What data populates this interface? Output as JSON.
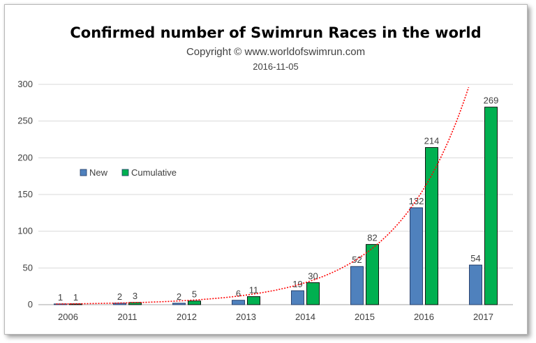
{
  "chart_data": {
    "type": "bar",
    "title": "Confirmed number of Swimrun Races in the world",
    "subtitle": "Copyright © www.worldofswimrun.com",
    "date": "2016-11-05",
    "categories": [
      "2006",
      "2011",
      "2012",
      "2013",
      "2014",
      "2015",
      "2016",
      "2017"
    ],
    "series": [
      {
        "name": "New",
        "values": [
          1,
          2,
          2,
          6,
          19,
          52,
          132,
          54
        ],
        "color": "#4f81bd"
      },
      {
        "name": "Cumulative",
        "values": [
          1,
          3,
          5,
          11,
          30,
          82,
          214,
          269
        ],
        "color": "#00b050"
      }
    ],
    "trendline": {
      "type": "exponential",
      "color": "#ff0000",
      "style": "dotted"
    },
    "ylim": [
      0,
      300
    ],
    "yticks": [
      0,
      50,
      100,
      150,
      200,
      250,
      300
    ],
    "grid": true,
    "legend": "middle-left"
  }
}
